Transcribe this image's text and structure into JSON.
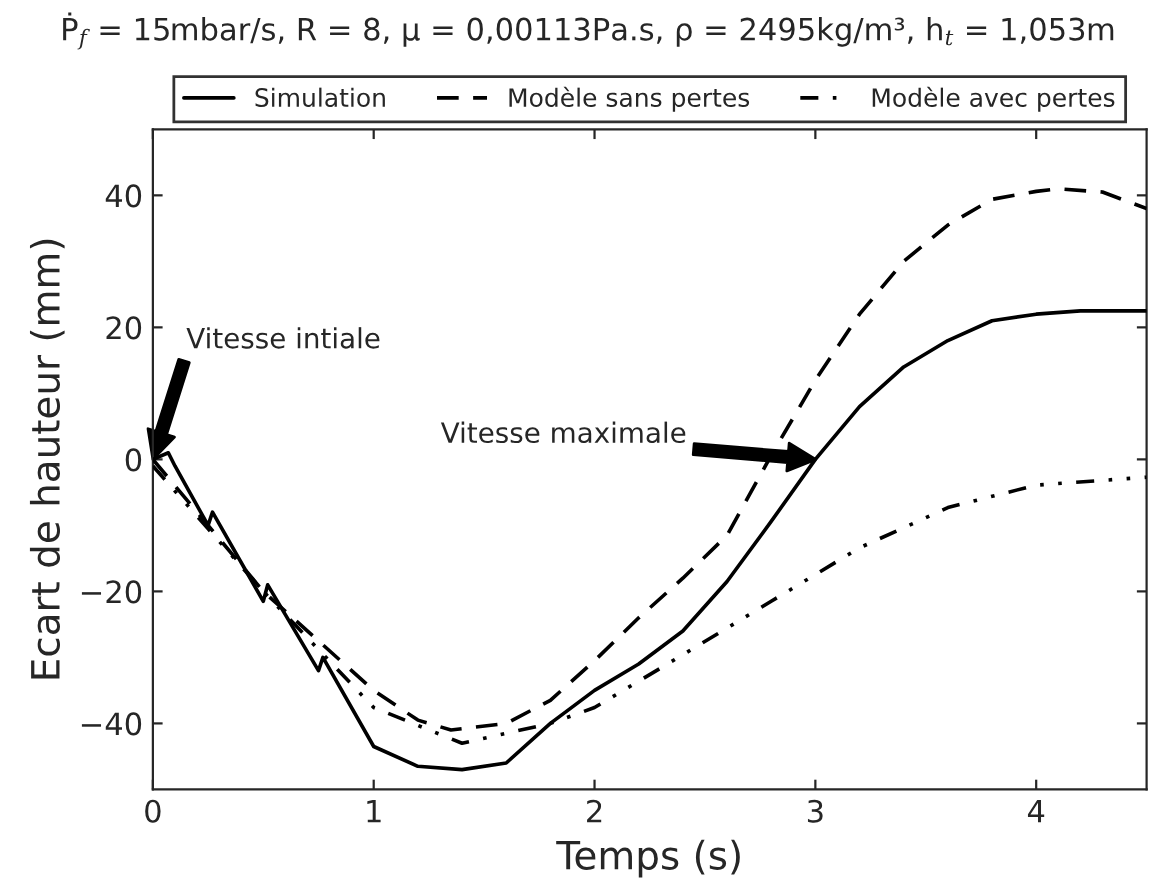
{
  "chart_data": {
    "type": "line",
    "title": "Ṗ$_{f}$ = 15mbar/s, R = 8, μ = 0,00113Pa.s, ρ = 2495kg/m³, h$_{t}$ = 1,053m",
    "xlabel": "Temps (s)",
    "ylabel": "Ecart de hauteur (mm)",
    "xlim": [
      0,
      4.5
    ],
    "xticks": [
      0,
      1,
      2,
      3,
      4
    ],
    "ylim": [
      -50,
      50
    ],
    "yticks": [
      {
        "value": -40,
        "label": "−40"
      },
      {
        "value": -20,
        "label": "−20"
      },
      0,
      20,
      40
    ],
    "grid": false,
    "legend": "top",
    "marker": "none",
    "series": [
      {
        "name": "Simulation",
        "color": "#000000",
        "line_style": "solid",
        "x": [
          0,
          0.07,
          0.1,
          0.25,
          0.27,
          0.5,
          0.52,
          0.75,
          0.77,
          1.0,
          1.2,
          1.4,
          1.6,
          1.8,
          2.0,
          2.2,
          2.4,
          2.6,
          2.8,
          3.0,
          3.2,
          3.4,
          3.6,
          3.8,
          4.0,
          4.2,
          4.5
        ],
        "values": [
          0,
          1,
          -1,
          -10,
          -8,
          -21.5,
          -19,
          -32,
          -30,
          -43.5,
          -46.5,
          -47,
          -46,
          -40,
          -35,
          -31,
          -26,
          -18.5,
          -9.4,
          0,
          8,
          14,
          18,
          21,
          22,
          22.5,
          22.5
        ]
      },
      {
        "name": "Modèle sans pertes",
        "color": "#000000",
        "line_style": "dashed",
        "x": [
          0,
          0.5,
          1.0,
          1.2,
          1.35,
          1.6,
          1.8,
          2.0,
          2.2,
          2.4,
          2.6,
          2.8,
          3.0,
          3.2,
          3.4,
          3.6,
          3.8,
          4.0,
          4.1,
          4.3,
          4.5
        ],
        "values": [
          0,
          -20,
          -35,
          -39.5,
          -41,
          -40,
          -36.5,
          -30.5,
          -24,
          -18,
          -11.5,
          0.6,
          12,
          22,
          30,
          35.5,
          39.4,
          40.6,
          41,
          40.5,
          38
        ]
      },
      {
        "name": "Modèle avec pertes",
        "color": "#000000",
        "line_style": "dashdot",
        "x": [
          0,
          0.5,
          1.0,
          1.4,
          1.8,
          2.0,
          2.4,
          2.8,
          3.2,
          3.6,
          4.0,
          4.5
        ],
        "values": [
          -1,
          -20,
          -37.6,
          -43,
          -40,
          -37.6,
          -29.6,
          -21.5,
          -13.4,
          -7.3,
          -3.9,
          -2.7
        ]
      }
    ],
    "annotations": [
      "Vitesse intiale",
      "Vitesse maximale"
    ]
  }
}
